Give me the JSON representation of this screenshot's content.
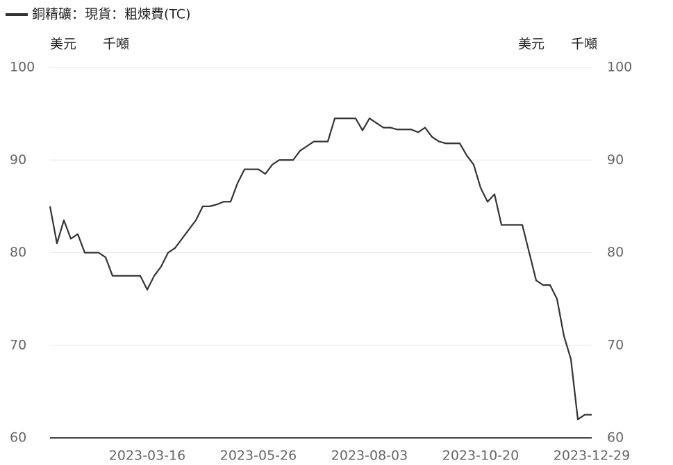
{
  "chart_data": {
    "type": "line",
    "axis_units": [
      "美元",
      "千噸"
    ],
    "categories": [
      null,
      null,
      null,
      null,
      null,
      null,
      null,
      null,
      null,
      null,
      null,
      null,
      null,
      null,
      "2023-03-16",
      null,
      null,
      null,
      null,
      null,
      null,
      null,
      null,
      null,
      null,
      null,
      null,
      null,
      null,
      null,
      "2023-05-26",
      null,
      null,
      null,
      null,
      null,
      null,
      null,
      null,
      null,
      null,
      null,
      null,
      null,
      null,
      null,
      "2023-08-03",
      null,
      null,
      null,
      null,
      null,
      null,
      null,
      null,
      null,
      null,
      null,
      null,
      null,
      null,
      null,
      "2023-10-20",
      null,
      null,
      null,
      null,
      null,
      null,
      null,
      null,
      null,
      null,
      null,
      null,
      null,
      null,
      null,
      "2023-12-29"
    ],
    "series": [
      {
        "name": "銅精礦：現貨：粗煉費(TC)",
        "color": "#333333",
        "values": [
          85,
          81,
          83.5,
          81.5,
          82,
          80,
          80,
          80,
          79.5,
          77.5,
          77.5,
          77.5,
          77.5,
          77.5,
          76,
          77.5,
          78.5,
          80,
          80.5,
          81.5,
          82.5,
          83.5,
          85,
          85,
          85.2,
          85.5,
          85.5,
          87.5,
          89,
          89,
          89,
          88.5,
          89.5,
          90,
          90,
          90,
          91,
          91.5,
          92,
          92,
          92,
          94.5,
          94.5,
          94.5,
          94.5,
          93.2,
          94.5,
          94,
          93.5,
          93.5,
          93.3,
          93.3,
          93.3,
          93,
          93.5,
          92.5,
          92,
          91.8,
          91.8,
          91.8,
          90.5,
          89.5,
          87,
          85.5,
          86.3,
          83,
          83,
          83,
          83,
          80,
          77,
          76.5,
          76.5,
          75,
          71,
          68.5,
          62,
          62.5,
          62.5
        ]
      }
    ],
    "ylim": [
      60,
      100
    ],
    "yticks": [
      60,
      70,
      80,
      90,
      100
    ],
    "y2lim": [
      60,
      100
    ],
    "y2ticks": [
      60,
      70,
      80,
      90,
      100
    ],
    "grid": true
  }
}
